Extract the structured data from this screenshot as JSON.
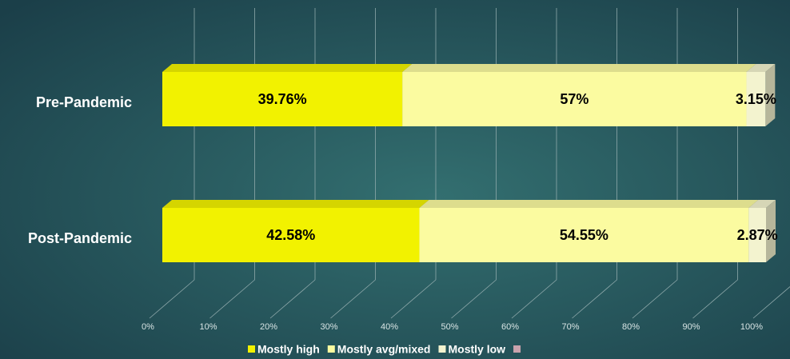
{
  "chart_data": {
    "type": "stacked_bar_3d",
    "orientation": "horizontal",
    "categories": [
      "Pre-Pandemic",
      "Post-Pandemic"
    ],
    "series": [
      {
        "name": "Mostly high",
        "color": "#f2f200",
        "values": [
          39.76,
          42.58
        ],
        "value_labels": [
          "39.76%",
          "42.58%"
        ]
      },
      {
        "name": "Mostly avg/mixed",
        "color": "#fbfba0",
        "values": [
          57,
          54.55
        ],
        "value_labels": [
          "57%",
          "54.55%"
        ]
      },
      {
        "name": "Mostly low",
        "color": "#f3f3cf",
        "values": [
          3.15,
          2.87
        ],
        "value_labels": [
          "3.15%",
          "2.87%"
        ]
      },
      {
        "name": null,
        "color": "#c9a3ad",
        "values": [
          null,
          null
        ]
      }
    ],
    "xlim": [
      0,
      100
    ],
    "xticks": [
      {
        "value": 0,
        "label": "0%"
      },
      {
        "value": 10,
        "label": "10%"
      },
      {
        "value": 20,
        "label": "20%"
      },
      {
        "value": 30,
        "label": "30%"
      },
      {
        "value": 40,
        "label": "40%"
      },
      {
        "value": 50,
        "label": "50%"
      },
      {
        "value": 60,
        "label": "60%"
      },
      {
        "value": 70,
        "label": "70%"
      },
      {
        "value": 80,
        "label": "80%"
      },
      {
        "value": 90,
        "label": "90%"
      },
      {
        "value": 100,
        "label": "100%"
      }
    ],
    "grid": true,
    "legend": "bottom"
  }
}
